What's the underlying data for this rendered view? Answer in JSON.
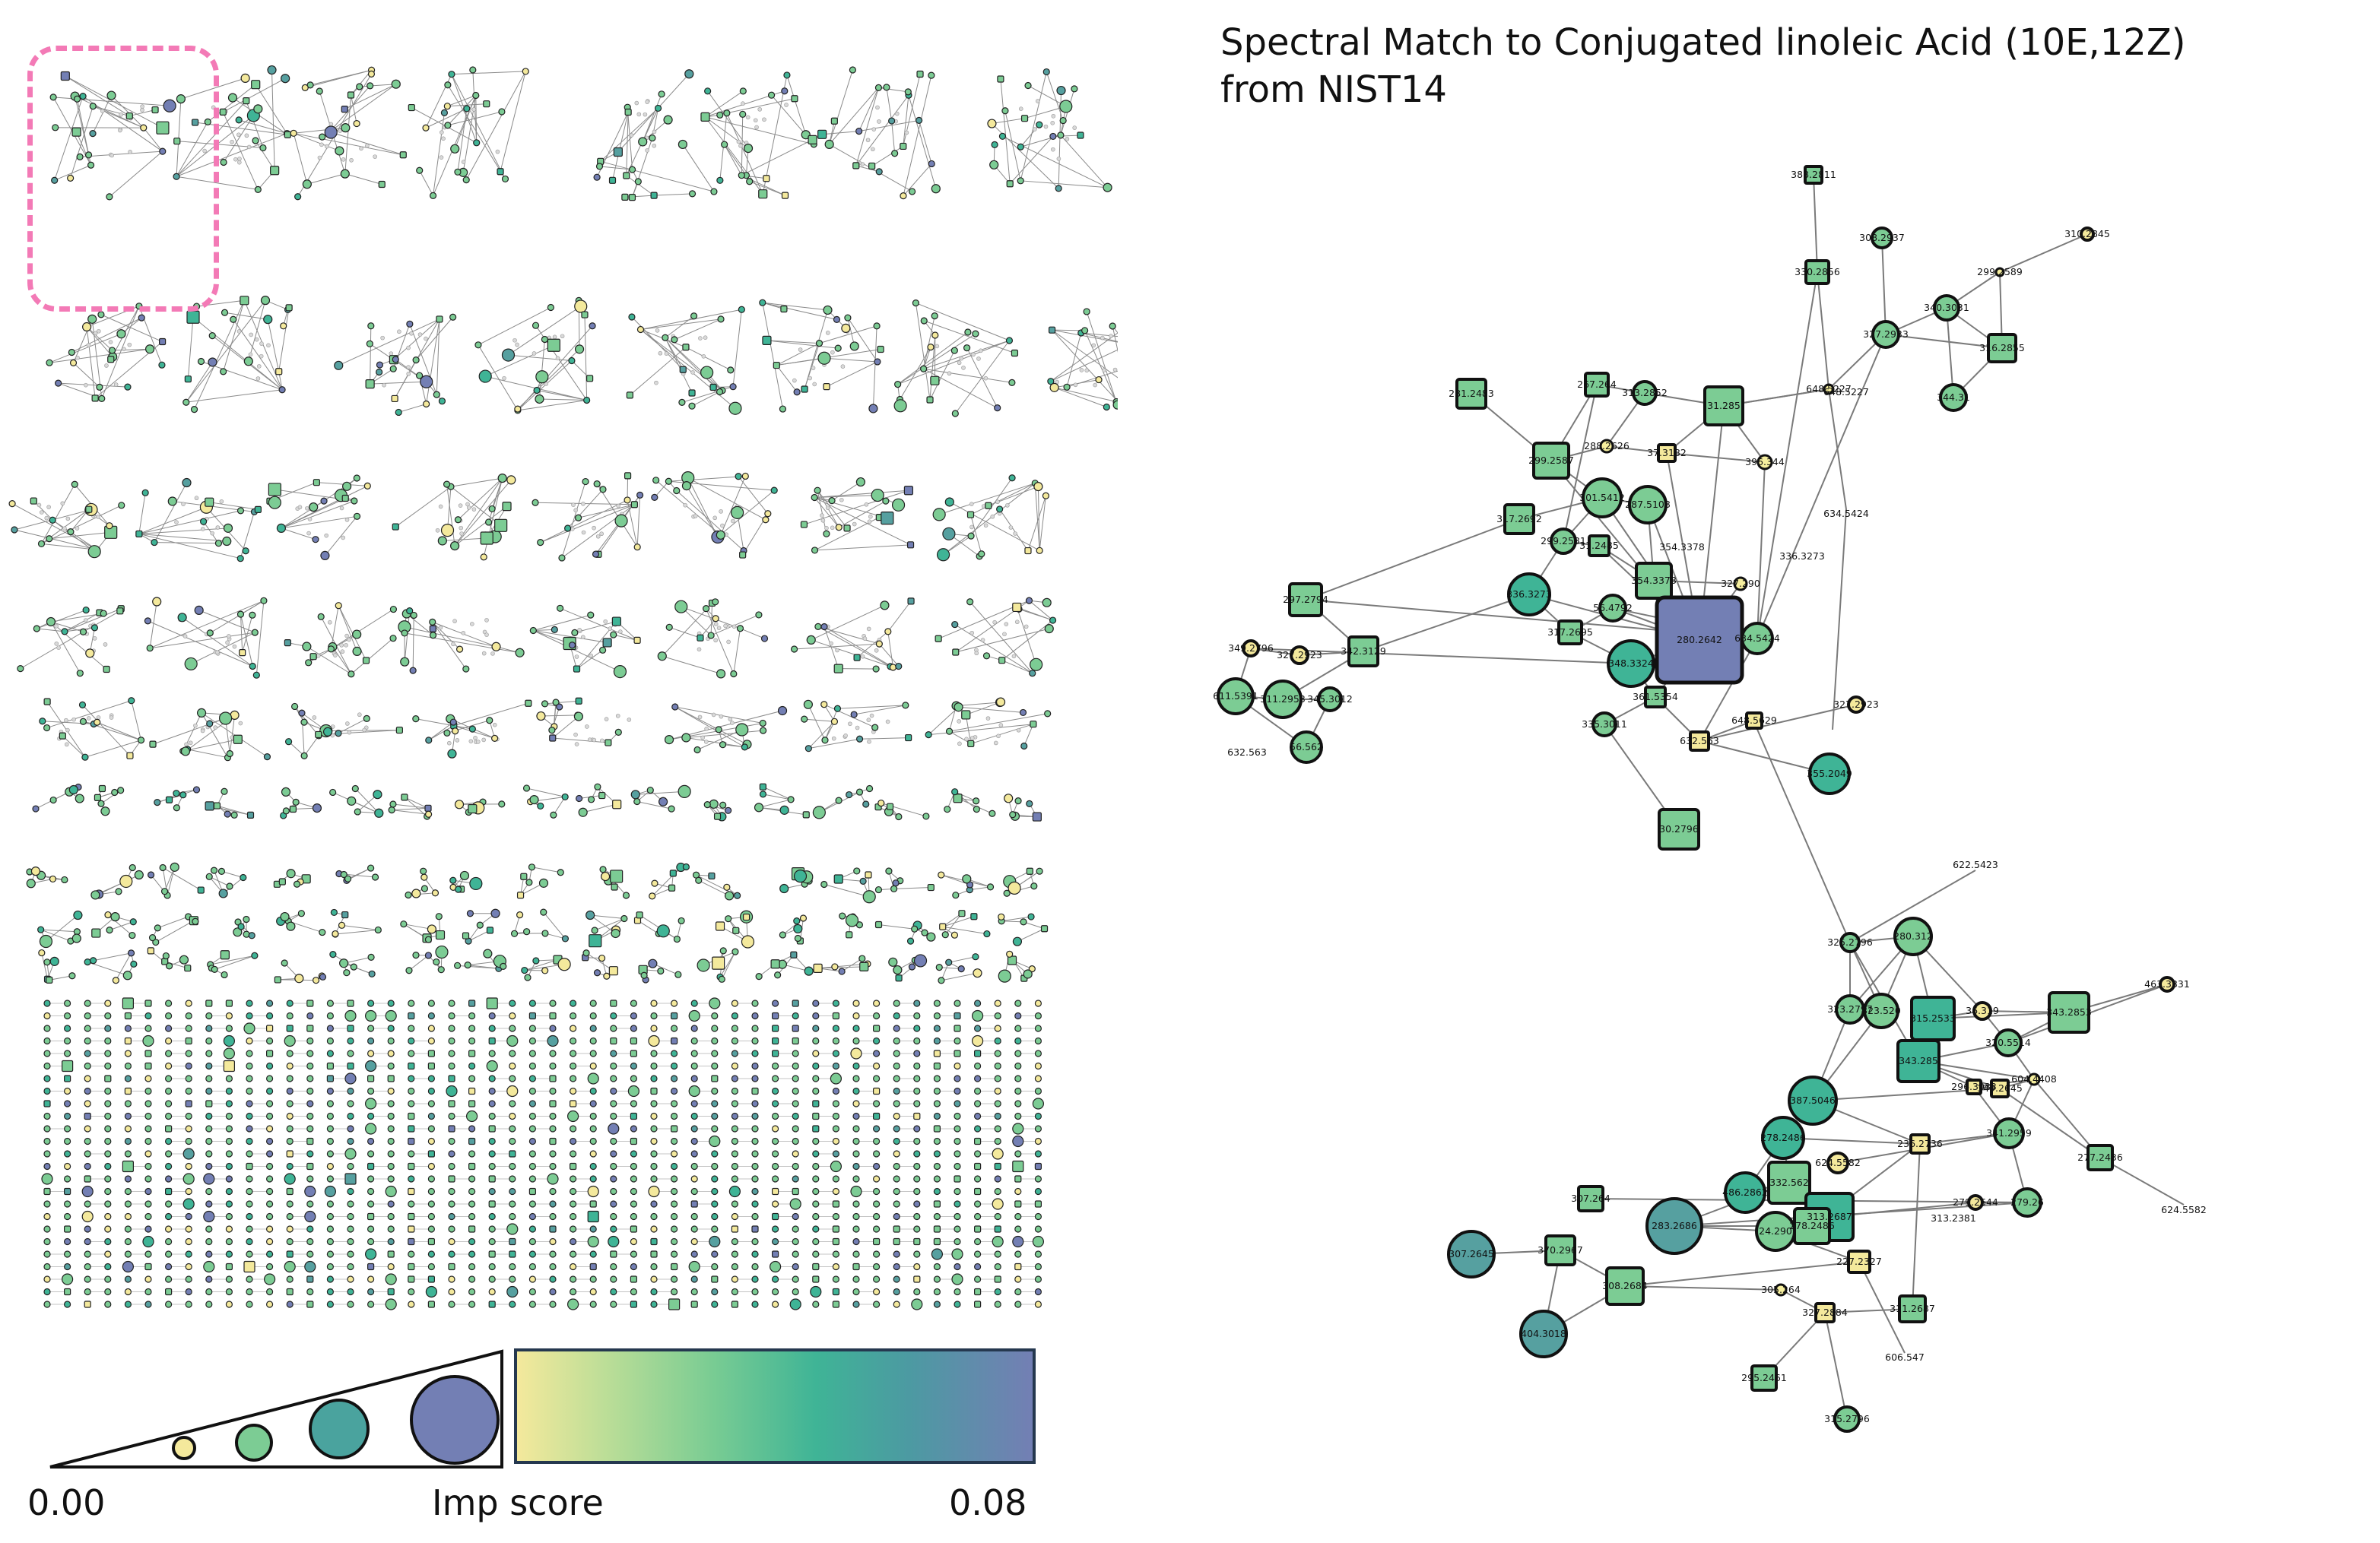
{
  "figure": {
    "title_line1": "Spectral Match to Conjugated linoleic Acid (10E,12Z)",
    "title_line2": "from NIST14",
    "legend": {
      "min_label": "0.00",
      "max_label": "0.08",
      "score_label": "Imp score"
    },
    "colors": {
      "low": "#f4e99c",
      "mid_low": "#7ccc94",
      "mid": "#3fb496",
      "mid_high": "#56a0a0",
      "high": "#737fb4",
      "edge": "#7a7a7a",
      "highlight": "#f37ab6"
    }
  },
  "cluster_a": {
    "hub": "280.2642",
    "labels": [
      "388.2811",
      "308.2937",
      "310.2845",
      "330.2856",
      "299.2589",
      "340.3031",
      "327.2933",
      "316.2855",
      "344.31",
      "281.2483",
      "267.264",
      "313.2852",
      "31.285",
      "299.2587",
      "288.2626",
      "37.3182",
      "396.344",
      "648.5227",
      "317.2692",
      "301.5412",
      "287.5108",
      "299.2581",
      "31.2485",
      "354.3378",
      "336.3273",
      "297.2794",
      "327.290",
      "317.2695",
      "56.4792",
      "634.5424",
      "349.2796",
      "327.2923",
      "342.3129",
      "348.3324",
      "611.5391",
      "311.2953",
      "345.3012",
      "630.5776",
      "56.562",
      "361.5354",
      "335.3011",
      "632.563",
      "648.5629",
      "327.2923",
      "355.2049",
      "30.2796",
      "326.2347",
      "323.259",
      "263.237"
    ]
  },
  "cluster_b": {
    "labels": [
      "622.5423",
      "325.2796",
      "280.312",
      "463.3331",
      "323.2797",
      "323.520",
      "315.2533",
      "36.319",
      "343.2853",
      "320.5514",
      "343.285",
      "387.5046",
      "296.3033",
      "349.2645",
      "604.4408",
      "278.2486",
      "236.2736",
      "341.2959",
      "277.2436",
      "624.5582",
      "486.2862",
      "332.562",
      "307.264",
      "313.2687",
      "279.2328",
      "279.2644",
      "384.295",
      "279.26",
      "313.2381",
      "283.2686",
      "278.2486",
      "24.290",
      "307.2645",
      "370.2967",
      "227.2327",
      "308.2684",
      "305.264",
      "327.2884",
      "311.2687",
      "404.3018",
      "327.264",
      "606.547",
      "295.2461",
      "315.2796"
    ]
  }
}
